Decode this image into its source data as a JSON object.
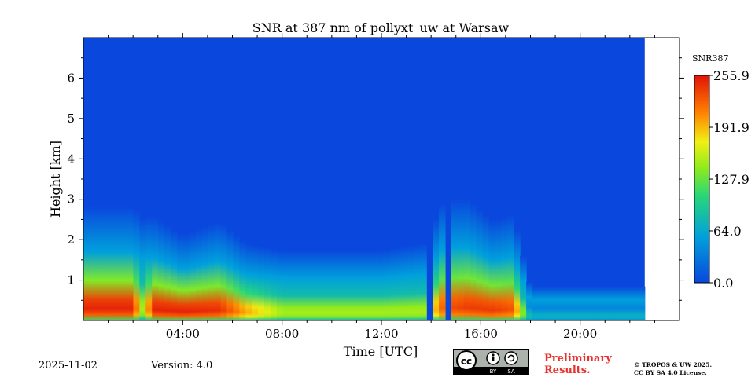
{
  "chart_data": {
    "type": "heatmap",
    "title": "SNR at 387 nm of pollyxt_uw at Warsaw",
    "xlabel": "Time [UTC]",
    "ylabel": "Height [km]",
    "x_ticks": [
      {
        "value": 4,
        "label": "04:00"
      },
      {
        "value": 8,
        "label": "08:00"
      },
      {
        "value": 12,
        "label": "12:00"
      },
      {
        "value": 16,
        "label": "16:00"
      },
      {
        "value": 20,
        "label": "20:00"
      }
    ],
    "y_ticks": [
      {
        "value": 1,
        "label": "1"
      },
      {
        "value": 2,
        "label": "2"
      },
      {
        "value": 3,
        "label": "3"
      },
      {
        "value": 4,
        "label": "4"
      },
      {
        "value": 5,
        "label": "5"
      },
      {
        "value": 6,
        "label": "6"
      }
    ],
    "xlim": [
      0,
      24
    ],
    "ylim": [
      0,
      7
    ],
    "data_end_hour": 22.6,
    "colorbar": {
      "label": "SNR387",
      "range": [
        0,
        255.9
      ],
      "ticks": [
        {
          "value": 0,
          "label": "0.0"
        },
        {
          "value": 64,
          "label": "64.0"
        },
        {
          "value": 127.9,
          "label": "127.9"
        },
        {
          "value": 191.9,
          "label": "191.9"
        },
        {
          "value": 255.9,
          "label": "255.9"
        }
      ]
    },
    "signal_profile": {
      "description_hours": [
        0,
        2,
        2.5,
        2.7,
        4,
        5.5,
        6.5,
        8,
        12,
        13.8,
        14.5,
        15.5,
        16.5,
        17.3,
        18,
        20,
        22.6
      ],
      "surface_snr": [
        250,
        250,
        120,
        250,
        250,
        245,
        200,
        150,
        150,
        150,
        230,
        240,
        240,
        230,
        70,
        70,
        70
      ],
      "boundary_layer_top_km": [
        1.4,
        1.4,
        1.2,
        1.3,
        1.0,
        1.2,
        0.9,
        0.8,
        0.8,
        0.9,
        1.5,
        1.5,
        1.2,
        1.3,
        0.3,
        0.3,
        0.3
      ]
    }
  },
  "footer": {
    "date": "2025-11-02",
    "version": "Version: 4.0",
    "preliminary_line1": "Preliminary",
    "preliminary_line2": "Results.",
    "license_line1": "© TROPOS & UW 2025.",
    "license_line2": "CC BY SA 4.0 License.",
    "cc_by": "BY",
    "cc_sa": "SA"
  },
  "colors": {
    "background": "#0a47dd",
    "prelim": "#e8312f"
  }
}
